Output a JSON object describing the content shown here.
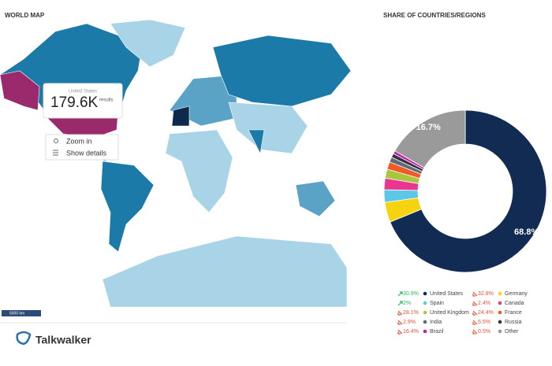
{
  "map_panel": {
    "title": "WORLD MAP",
    "tooltip": {
      "country": "United States",
      "value": "179.6K",
      "unit": "results"
    },
    "menu": [
      "Zoom in",
      "Show details"
    ],
    "scale": "5000 km",
    "logo": "Talkwalker"
  },
  "chart_data": {
    "type": "pie",
    "title": "SHARE OF COUNTRIES/REGIONS",
    "donut": true,
    "categories": [
      "United States",
      "Germany",
      "Spain",
      "Canada",
      "United Kingdom",
      "France",
      "India",
      "Russia",
      "Brazil",
      "Other"
    ],
    "values": [
      68.8,
      4,
      2.5,
      2.3,
      1.8,
      1.5,
      1.0,
      0.8,
      0.6,
      16.7
    ],
    "value_labels": [
      "68.8%",
      null,
      null,
      null,
      null,
      null,
      null,
      null,
      null,
      "16.7%"
    ],
    "colors": [
      "#112b52",
      "#f7d20f",
      "#5bc8e8",
      "#e9378f",
      "#a8c73c",
      "#ef5a28",
      "#5c6b7a",
      "#3d2f3f",
      "#c21fae",
      "#9a9a9a"
    ],
    "changes": [
      "30.9%",
      "32.8%",
      "2%",
      "2.4%",
      "28.1%",
      "24.4%",
      "2.9%",
      "5.5%",
      "16.4%",
      "0.5%"
    ],
    "change_directions": [
      "up",
      "down",
      "up",
      "down",
      "down",
      "down",
      "down",
      "down",
      "down",
      "down"
    ]
  }
}
